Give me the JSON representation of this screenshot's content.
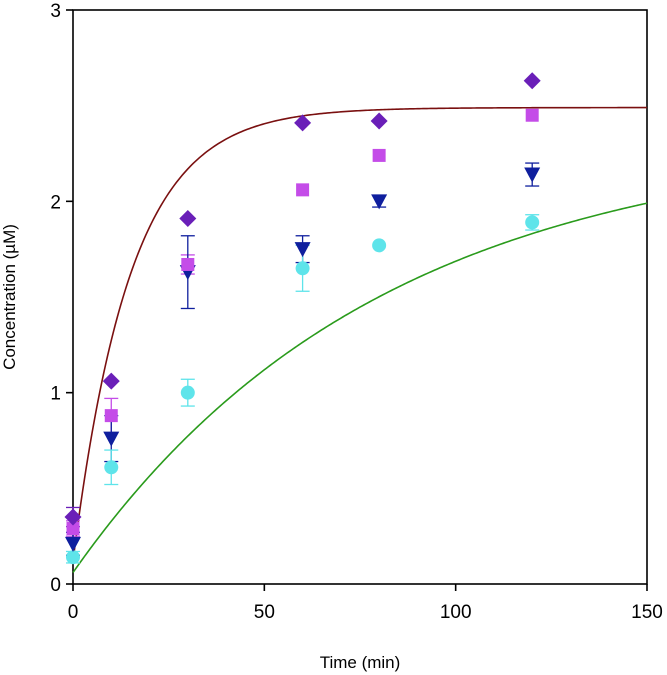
{
  "chart_data": {
    "type": "scatter",
    "title": "",
    "xlabel": "Time (min)",
    "ylabel": "Concentration (µM)",
    "xlim": [
      0,
      150
    ],
    "ylim": [
      0,
      3
    ],
    "x_ticks": [
      0,
      50,
      100,
      150
    ],
    "y_ticks": [
      0,
      1,
      2,
      3
    ],
    "x_tick_labels": [
      "0",
      "50",
      "100",
      "150"
    ],
    "y_tick_labels": [
      "0",
      "1",
      "2",
      "3"
    ],
    "grid": false,
    "legend": "none",
    "series": [
      {
        "marker": "diamond",
        "color": "#6a1fb8",
        "points": [
          {
            "x": 0,
            "y": 0.35,
            "err": 0.05
          },
          {
            "x": 10,
            "y": 1.06,
            "err": 0
          },
          {
            "x": 30,
            "y": 1.91,
            "err": 0
          },
          {
            "x": 60,
            "y": 2.41,
            "err": 0
          },
          {
            "x": 80,
            "y": 2.42,
            "err": 0
          },
          {
            "x": 120,
            "y": 2.63,
            "err": 0
          }
        ]
      },
      {
        "marker": "square",
        "color": "#c44ce8",
        "points": [
          {
            "x": 0,
            "y": 0.29,
            "err": 0.04
          },
          {
            "x": 10,
            "y": 0.88,
            "err": 0.09
          },
          {
            "x": 30,
            "y": 1.67,
            "err": 0.05
          },
          {
            "x": 60,
            "y": 2.06,
            "err": 0
          },
          {
            "x": 80,
            "y": 2.24,
            "err": 0
          },
          {
            "x": 120,
            "y": 2.45,
            "err": 0
          }
        ]
      },
      {
        "marker": "triangle-down",
        "color": "#0f1f9e",
        "points": [
          {
            "x": 0,
            "y": 0.21,
            "err": 0.06
          },
          {
            "x": 10,
            "y": 0.76,
            "err": 0.12
          },
          {
            "x": 30,
            "y": 1.63,
            "err": 0.19
          },
          {
            "x": 60,
            "y": 1.75,
            "err": 0.07
          },
          {
            "x": 80,
            "y": 2.0,
            "err": 0.03
          },
          {
            "x": 120,
            "y": 2.14,
            "err": 0.06
          }
        ]
      },
      {
        "marker": "circle",
        "color": "#5ee4ea",
        "points": [
          {
            "x": 0,
            "y": 0.14,
            "err": 0.03
          },
          {
            "x": 10,
            "y": 0.61,
            "err": 0.09
          },
          {
            "x": 30,
            "y": 1.0,
            "err": 0.07
          },
          {
            "x": 60,
            "y": 1.65,
            "err": 0.12
          },
          {
            "x": 80,
            "y": 1.77,
            "err": 0
          },
          {
            "x": 120,
            "y": 1.89,
            "err": 0.04
          }
        ]
      }
    ],
    "curves": [
      {
        "type": "line",
        "color": "#7a1010",
        "model": {
          "y0": 0.12,
          "ymax": 2.49,
          "k": 15
        }
      },
      {
        "type": "line",
        "color": "#2a9b1c",
        "model": {
          "y0": 0.06,
          "ymax": 2.34,
          "k": 80
        }
      }
    ]
  }
}
